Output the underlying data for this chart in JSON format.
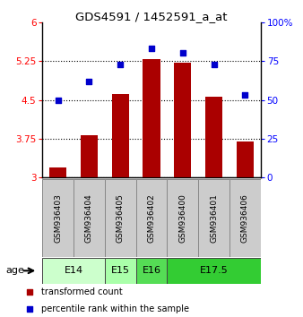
{
  "title": "GDS4591 / 1452591_a_at",
  "samples": [
    "GSM936403",
    "GSM936404",
    "GSM936405",
    "GSM936402",
    "GSM936400",
    "GSM936401",
    "GSM936406"
  ],
  "bar_values": [
    3.2,
    3.82,
    4.62,
    5.28,
    5.22,
    4.56,
    3.7
  ],
  "percentile_values": [
    50,
    62,
    73,
    83,
    80,
    73,
    53
  ],
  "bar_color": "#aa0000",
  "dot_color": "#0000cc",
  "ylim_left": [
    3,
    6
  ],
  "ylim_right": [
    0,
    100
  ],
  "yticks_left": [
    3,
    3.75,
    4.5,
    5.25,
    6
  ],
  "yticks_right": [
    0,
    25,
    50,
    75,
    100
  ],
  "ytick_labels_left": [
    "3",
    "3.75",
    "4.5",
    "5.25",
    "6"
  ],
  "ytick_labels_right": [
    "0",
    "25",
    "50",
    "75",
    "100%"
  ],
  "age_groups": [
    {
      "label": "E14",
      "samples": [
        0,
        1
      ],
      "color": "#ccffcc"
    },
    {
      "label": "E15",
      "samples": [
        2
      ],
      "color": "#aaffaa"
    },
    {
      "label": "E16",
      "samples": [
        3
      ],
      "color": "#55dd55"
    },
    {
      "label": "E17.5",
      "samples": [
        4,
        5,
        6
      ],
      "color": "#33cc33"
    }
  ],
  "age_label": "age",
  "legend_bar_label": "transformed count",
  "legend_dot_label": "percentile rank within the sample",
  "bar_color_hex": "#cc0000",
  "dot_color_hex": "#0000cc",
  "bar_width": 0.55,
  "base_value": 3
}
